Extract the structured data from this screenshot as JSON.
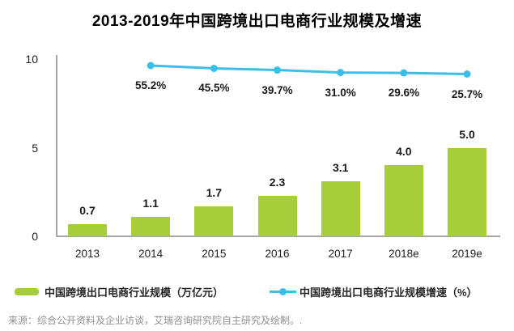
{
  "title": "2013-2019年中国跨境出口电商行业规模及增速",
  "source_note": "来源：综合公开资料及企业访谈，艾瑞咨询研究院自主研究及绘制。.",
  "colors": {
    "bar": "#a6ce39",
    "line": "#3bbfe9",
    "axis_line": "#a6a6a6",
    "source_text": "#8f8f8f"
  },
  "chart_data": {
    "type": "bar+line",
    "title": "2013-2019年中国跨境出口电商行业规模及增速",
    "categories": [
      "2013",
      "2014",
      "2015",
      "2016",
      "2017",
      "2018e",
      "2019e"
    ],
    "series": [
      {
        "name": "中国跨境出口电商行业规模（万亿元）",
        "type": "bar",
        "axis": "left",
        "values": [
          0.7,
          1.1,
          1.7,
          2.3,
          3.1,
          4.0,
          5.0
        ],
        "labels": [
          "0.7",
          "1.1",
          "1.7",
          "2.3",
          "3.1",
          "4.0",
          "5.0"
        ]
      },
      {
        "name": "中国跨境出口电商行业规模增速（%）",
        "type": "line",
        "axis": "right-hidden",
        "values": [
          null,
          55.2,
          45.5,
          39.7,
          31.0,
          29.6,
          25.7
        ],
        "labels": [
          null,
          "55.2%",
          "45.5%",
          "39.7%",
          "31.0%",
          "29.6%",
          "25.7%"
        ]
      }
    ],
    "left_axis": {
      "ticks": [
        0,
        5,
        10
      ],
      "min": 0,
      "max": 10
    },
    "grid": false,
    "legend_position": "bottom"
  }
}
